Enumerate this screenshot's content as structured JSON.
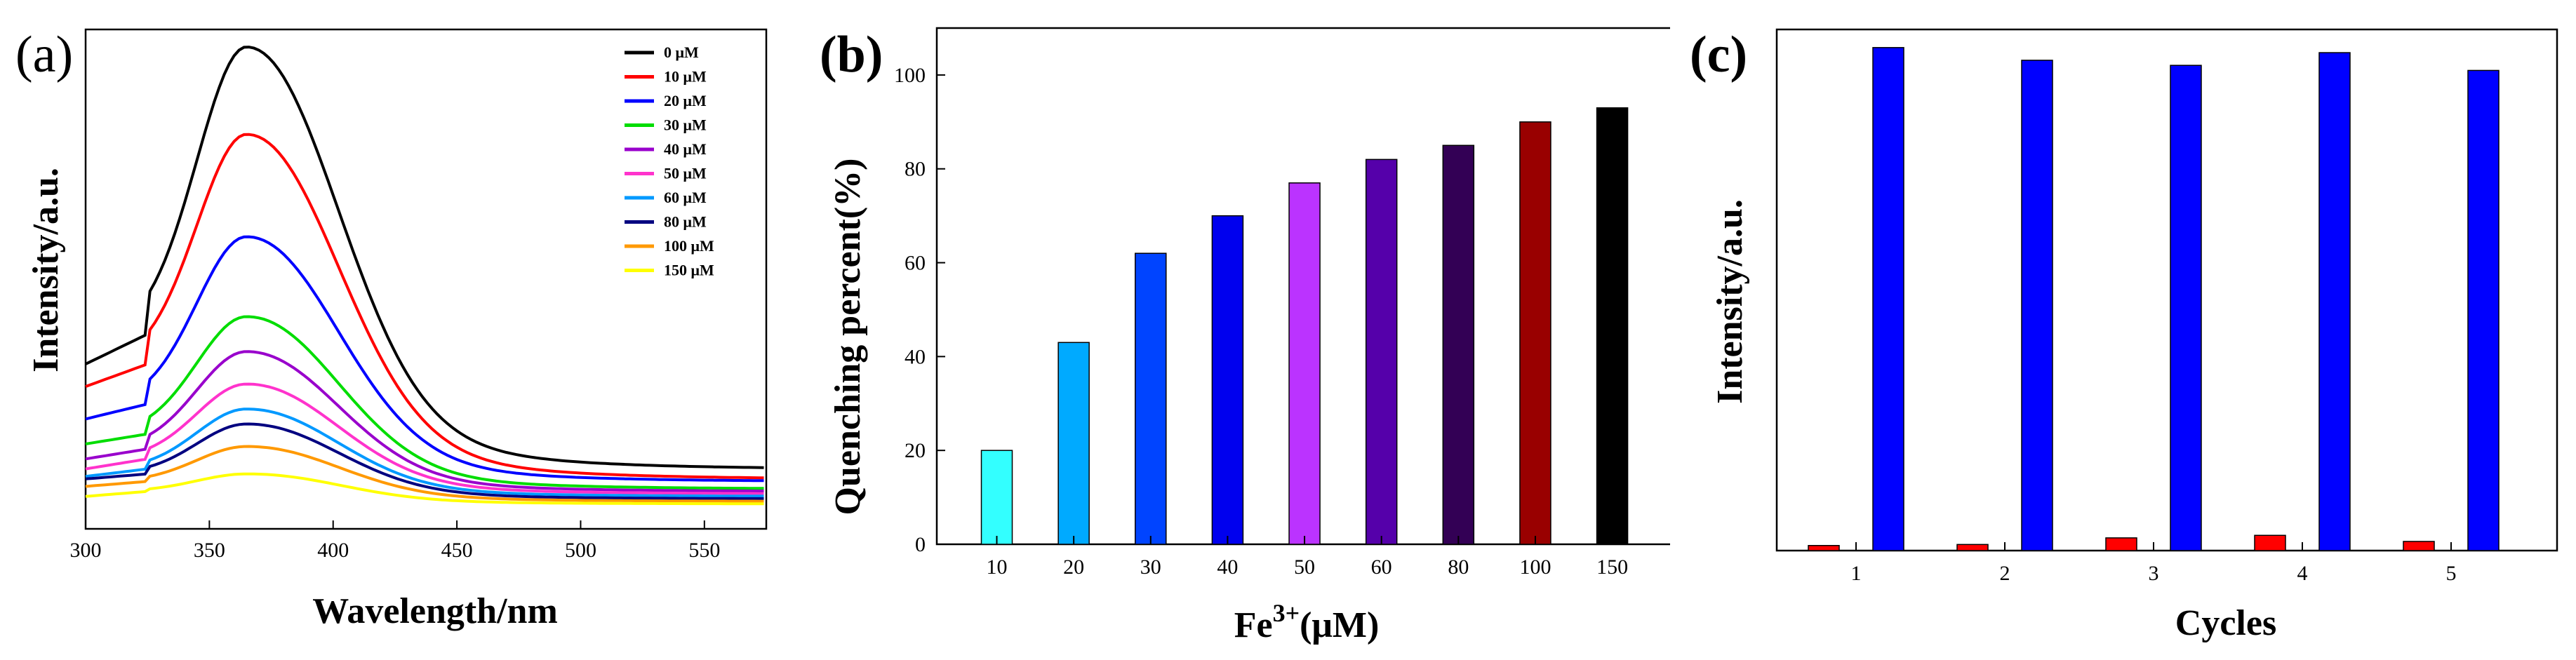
{
  "chart_data": [
    {
      "panel_label": "(a)",
      "type": "line",
      "xlabel": "Wavelength/nm",
      "ylabel": "Intensity/a.u.",
      "xlim": [
        300,
        575
      ],
      "ylim": [
        0,
        1.0
      ],
      "xticks": [
        300,
        350,
        400,
        450,
        500,
        550
      ],
      "y_ticks_shown": false,
      "legend_position": "top-right",
      "peak_wavelength": 365,
      "series": [
        {
          "name": "0 μM",
          "color": "#000000",
          "y300": 0.33,
          "y325": 0.39,
          "peak": 0.965,
          "tail": 0.12
        },
        {
          "name": "10 μM",
          "color": "#ff0000",
          "y300": 0.285,
          "y325": 0.33,
          "peak": 0.79,
          "tail": 0.1
        },
        {
          "name": "20 μM",
          "color": "#0000ff",
          "y300": 0.22,
          "y325": 0.25,
          "peak": 0.585,
          "tail": 0.095
        },
        {
          "name": "30 μM",
          "color": "#00dd00",
          "y300": 0.17,
          "y325": 0.19,
          "peak": 0.425,
          "tail": 0.08
        },
        {
          "name": "40 μM",
          "color": "#9900cc",
          "y300": 0.14,
          "y325": 0.16,
          "peak": 0.355,
          "tail": 0.075
        },
        {
          "name": "50 μM",
          "color": "#ff33cc",
          "y300": 0.12,
          "y325": 0.14,
          "peak": 0.29,
          "tail": 0.07
        },
        {
          "name": "60 μM",
          "color": "#0099ff",
          "y300": 0.105,
          "y325": 0.12,
          "peak": 0.24,
          "tail": 0.065
        },
        {
          "name": "80 μM",
          "color": "#000080",
          "y300": 0.1,
          "y325": 0.11,
          "peak": 0.21,
          "tail": 0.06
        },
        {
          "name": "100 μM",
          "color": "#ff9900",
          "y300": 0.085,
          "y325": 0.095,
          "peak": 0.165,
          "tail": 0.055
        },
        {
          "name": "150 μM",
          "color": "#ffff00",
          "y300": 0.065,
          "y325": 0.075,
          "peak": 0.11,
          "tail": 0.05
        }
      ]
    },
    {
      "panel_label": "(b)",
      "type": "bar",
      "xlabel_main": "Fe",
      "xlabel_sup": "3+",
      "xlabel_rest": "(μM)",
      "ylabel": "Quenching percent(%)",
      "ylim": [
        0,
        110
      ],
      "yticks": [
        0,
        20,
        40,
        60,
        80,
        100
      ],
      "categories": [
        "10",
        "20",
        "30",
        "40",
        "50",
        "60",
        "80",
        "100",
        "150"
      ],
      "values": [
        20,
        43,
        62,
        70,
        77,
        82,
        85,
        90,
        93
      ],
      "colors": [
        "#33ffff",
        "#00aaff",
        "#0044ff",
        "#0000ee",
        "#bb33ff",
        "#5500aa",
        "#330055",
        "#990000",
        "#000000"
      ]
    },
    {
      "panel_label": "(c)",
      "type": "bar",
      "xlabel": "Cycles",
      "ylabel": "Intensity/a.u.",
      "ylim": [
        0,
        1.0
      ],
      "y_ticks_shown": false,
      "categories": [
        "1",
        "2",
        "3",
        "4",
        "5"
      ],
      "series": [
        {
          "color": "#ff0000",
          "values": [
            0.01,
            0.012,
            0.025,
            0.03,
            0.018
          ]
        },
        {
          "color": "#0000ff",
          "values": [
            0.99,
            0.965,
            0.955,
            0.98,
            0.945
          ]
        }
      ]
    }
  ]
}
